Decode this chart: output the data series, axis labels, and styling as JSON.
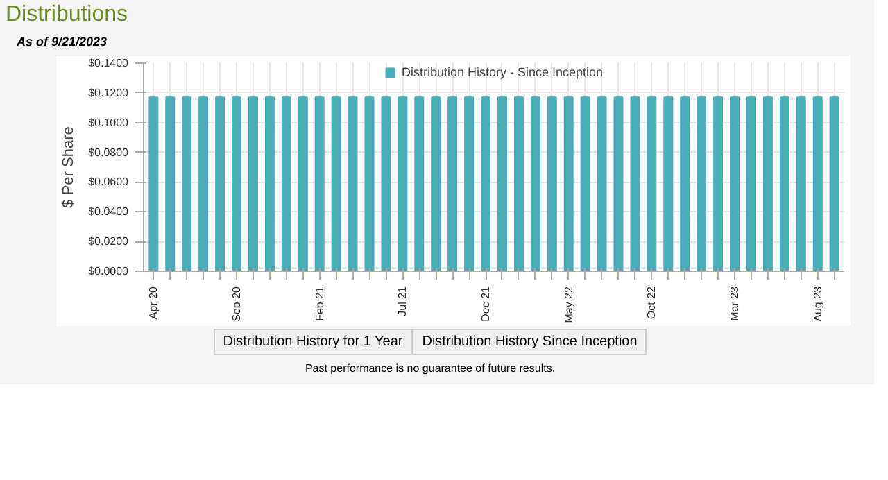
{
  "chart_data": {
    "type": "bar",
    "title": "Distributions",
    "subtitle": "As of 9/21/2023",
    "ylabel": "$ Per Share",
    "categories": [
      "Apr 20",
      null,
      null,
      null,
      null,
      "Sep 20",
      null,
      null,
      null,
      null,
      "Feb 21",
      null,
      null,
      null,
      null,
      "Jul 21",
      null,
      null,
      null,
      null,
      "Dec 21",
      null,
      null,
      null,
      null,
      "May 22",
      null,
      null,
      null,
      null,
      "Oct 22",
      null,
      null,
      null,
      null,
      "Mar 23",
      null,
      null,
      null,
      null,
      "Aug 23",
      null
    ],
    "series": [
      {
        "name": "Distribution History - Since Inception",
        "color": "#4aabb9",
        "values": [
          0.117,
          0.117,
          0.117,
          0.117,
          0.117,
          0.117,
          0.117,
          0.117,
          0.117,
          0.117,
          0.117,
          0.117,
          0.117,
          0.117,
          0.117,
          0.117,
          0.117,
          0.117,
          0.117,
          0.117,
          0.117,
          0.117,
          0.117,
          0.117,
          0.117,
          0.117,
          0.117,
          0.117,
          0.117,
          0.117,
          0.117,
          0.117,
          0.117,
          0.117,
          0.117,
          0.117,
          0.117,
          0.117,
          0.117,
          0.117,
          0.117,
          0.117
        ]
      }
    ],
    "ylim": [
      0,
      0.14
    ],
    "yticks": [
      {
        "value": 0,
        "label": "$0.0000"
      },
      {
        "value": 0.02,
        "label": "$0.0200"
      },
      {
        "value": 0.04,
        "label": "$0.0400"
      },
      {
        "value": 0.06,
        "label": "$0.0600"
      },
      {
        "value": 0.08,
        "label": "$0.0800"
      },
      {
        "value": 0.1,
        "label": "$0.1000"
      },
      {
        "value": 0.12,
        "label": "$0.1200"
      },
      {
        "value": 0.14,
        "label": "$0.1400"
      }
    ],
    "grid": true,
    "legend": "top",
    "annotations": [
      "Distribution History for 1 Year",
      "Distribution History Since Inception",
      "Past performance is no guarantee of future results."
    ]
  }
}
